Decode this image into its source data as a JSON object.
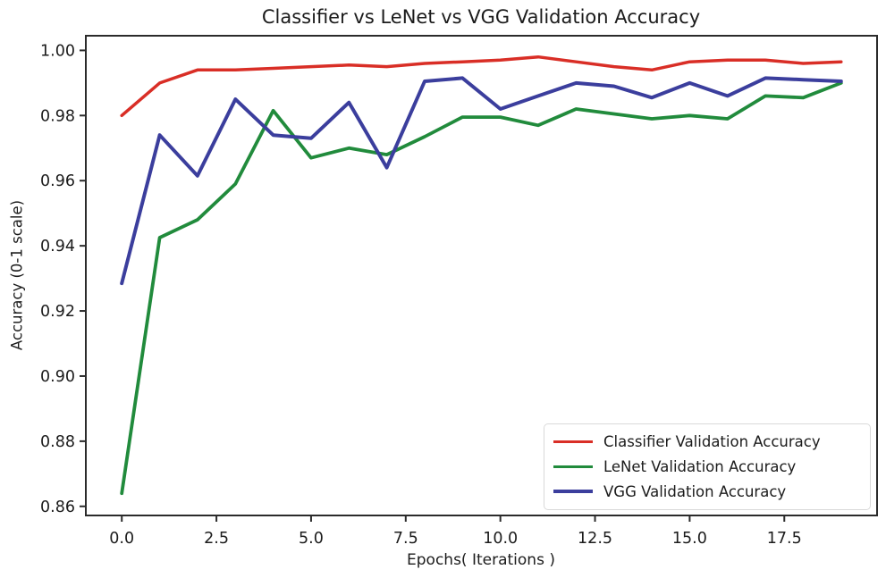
{
  "chart_data": {
    "type": "line",
    "title": "Classifier vs LeNet vs VGG Validation Accuracy",
    "xlabel": "Epochs( Iterations )",
    "ylabel": "Accuracy (0-1 scale)",
    "x": [
      0,
      1,
      2,
      3,
      4,
      5,
      6,
      7,
      8,
      9,
      10,
      11,
      12,
      13,
      14,
      15,
      16,
      17,
      18,
      19
    ],
    "series": [
      {
        "name": "Classifier Validation Accuracy",
        "color": "#d92e26",
        "linewidth": 3.5,
        "values": [
          0.98,
          0.99,
          0.994,
          0.994,
          0.9945,
          0.995,
          0.9955,
          0.995,
          0.996,
          0.9965,
          0.997,
          0.998,
          0.9965,
          0.995,
          0.994,
          0.9965,
          0.997,
          0.997,
          0.996,
          0.9965
        ]
      },
      {
        "name": "LeNet Validation Accuracy",
        "color": "#218b3c",
        "linewidth": 3.8,
        "values": [
          0.864,
          0.9425,
          0.948,
          0.959,
          0.9815,
          0.967,
          0.97,
          0.968,
          0.9735,
          0.9795,
          0.9795,
          0.977,
          0.982,
          0.9805,
          0.979,
          0.98,
          0.979,
          0.986,
          0.9855,
          0.99
        ]
      },
      {
        "name": "VGG Validation Accuracy",
        "color": "#3b3e9d",
        "linewidth": 4.0,
        "values": [
          0.9285,
          0.974,
          0.9615,
          0.985,
          0.974,
          0.973,
          0.984,
          0.964,
          0.9905,
          0.9915,
          0.982,
          0.986,
          0.99,
          0.989,
          0.9855,
          0.99,
          0.986,
          0.9915,
          0.991,
          0.9905
        ]
      }
    ],
    "xlim": [
      -0.95,
      19.95
    ],
    "ylim": [
      0.8572,
      1.0045
    ],
    "xticks": {
      "values": [
        0,
        2.5,
        5,
        7.5,
        10,
        12.5,
        15,
        17.5
      ],
      "labels": [
        "0.0",
        "2.5",
        "5.0",
        "7.5",
        "10.0",
        "12.5",
        "15.0",
        "17.5"
      ]
    },
    "yticks": {
      "values": [
        0.86,
        0.88,
        0.9,
        0.92,
        0.94,
        0.96,
        0.98,
        1.0
      ],
      "labels": [
        "0.86",
        "0.88",
        "0.90",
        "0.92",
        "0.94",
        "0.96",
        "0.98",
        "1.00"
      ]
    },
    "legend_position": "lower right",
    "grid": false,
    "axis_color": "#2b2b2b",
    "tick_label_color": "#1c1c1c",
    "background_color": "#ffffff"
  }
}
